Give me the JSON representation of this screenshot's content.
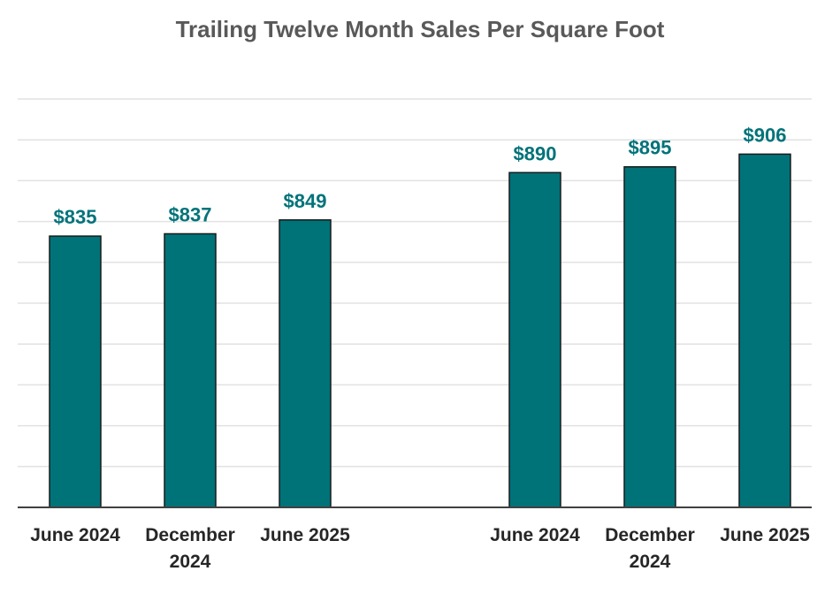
{
  "chart_data": {
    "type": "bar",
    "title": "Trailing Twelve Month Sales Per Square Foot",
    "xlabel": "",
    "ylabel": "",
    "ylim": [
      600,
      920
    ],
    "grid": true,
    "legend": "none",
    "bar_color": "#007379",
    "label_color": "#007379",
    "groups": [
      {
        "categories": [
          "June 2024",
          "December 2024",
          "June 2025"
        ],
        "values": [
          835,
          837,
          849
        ],
        "labels": [
          "$835",
          "$837",
          "$849"
        ]
      },
      {
        "categories": [
          "June 2024",
          "December 2024",
          "June 2025"
        ],
        "values": [
          890,
          895,
          906
        ],
        "labels": [
          "$890",
          "$895",
          "$906"
        ]
      }
    ]
  }
}
